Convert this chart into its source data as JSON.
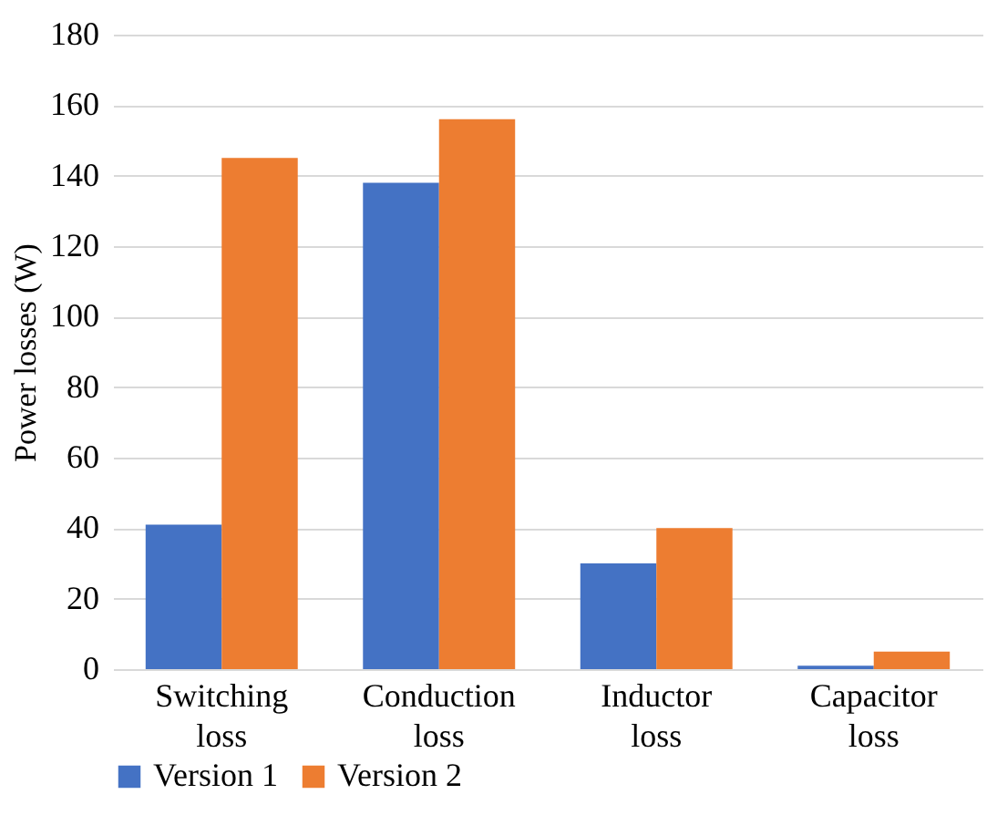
{
  "chart_data": {
    "type": "bar",
    "ylabel": "Power losses (W)",
    "categories": [
      "Switching loss",
      "Conduction loss",
      "Inductor loss",
      "Capacitor loss"
    ],
    "series": [
      {
        "name": "Version 1",
        "color": "#4472c4",
        "values": [
          41,
          138,
          30,
          1
        ]
      },
      {
        "name": "Version 2",
        "color": "#ed7d31",
        "values": [
          145,
          156,
          40,
          5
        ]
      }
    ],
    "ylim": [
      0,
      180
    ],
    "yticks": [
      0,
      20,
      40,
      60,
      80,
      100,
      120,
      140,
      160,
      180
    ],
    "grid": "y",
    "legend": "bottom"
  }
}
